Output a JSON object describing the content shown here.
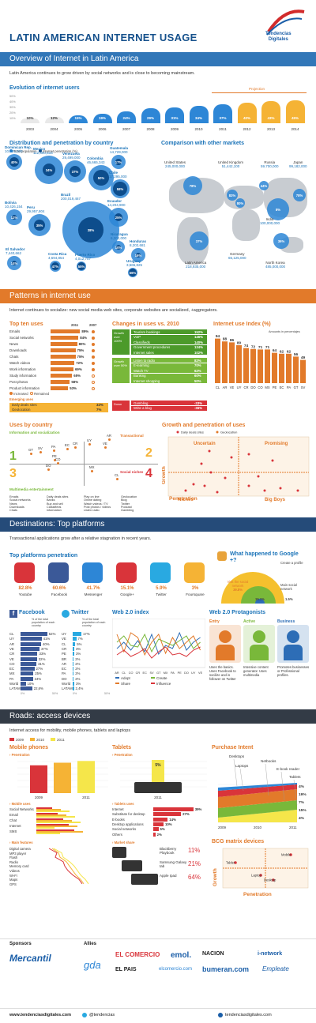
{
  "header": {
    "title": "Latin american internet usage",
    "logo_line1": "Tendencias",
    "logo_line2": "Digitales"
  },
  "overview": {
    "band_title": "Overview of Internet in Latin America",
    "intro": "Latin America continues to grow driven by social networks and is close to becoming mainstream.",
    "evolution_title": "Evolution of internet users",
    "projection_label": "Projection",
    "years": [
      "2003",
      "2004",
      "2005",
      "2006",
      "2007",
      "2008",
      "2009",
      "2010",
      "2011",
      "2012",
      "2013",
      "2014"
    ],
    "percents": [
      "10%",
      "12%",
      "15%",
      "19%",
      "24%",
      "29%",
      "31%",
      "34%",
      "37%",
      "40%",
      "43%",
      "45%"
    ],
    "yaxis": [
      "50%",
      "40%",
      "30%",
      "20%",
      "10%"
    ],
    "distribution_title": "Distribution and penetration by country",
    "legend_total": "Total population",
    "legend_penetration": "Internet penetration (%)",
    "countries": [
      {
        "name": "Dominican Rep.",
        "pop": "10,026,000",
        "pct": "40%"
      },
      {
        "name": "Mexico",
        "pop": "112,890,633",
        "pct": "34%"
      },
      {
        "name": "Venezuela",
        "pop": "29,499,000",
        "pct": "37%"
      },
      {
        "name": "Colombia",
        "pop": "46,665,343",
        "pct": "50%"
      },
      {
        "name": "Guatemala",
        "pop": "14,729,000",
        "pct": "17%"
      },
      {
        "name": "Chile",
        "pop": "17,295,000",
        "pct": "58%"
      },
      {
        "name": "Bolivia",
        "pop": "10,426,154",
        "pct": "12%"
      },
      {
        "name": "Brazil",
        "pop": "200,019,467",
        "pct": "38%"
      },
      {
        "name": "Ecuador",
        "pop": "14,204,900",
        "pct": "25%"
      },
      {
        "name": "Peru",
        "pop": "29,957,804",
        "pct": "35%"
      },
      {
        "name": "Nicaragua",
        "pop": "6,302,000",
        "pct": "10%"
      },
      {
        "name": "Honduras",
        "pop": "8,202,681",
        "pct": "16%"
      },
      {
        "name": "El Salvador",
        "pop": "7,440,662",
        "pct": "14%"
      },
      {
        "name": "Costa Rica",
        "pop": "4,694,854",
        "pct": "47%"
      },
      {
        "name": "Puerto Rico",
        "pop": "4,012,707",
        "pct": "55%"
      },
      {
        "name": "Uruguay",
        "pop": "3,565,825",
        "pct": "56%"
      }
    ],
    "comparison_title": "Comparison with other markets",
    "markets": [
      {
        "name": "United States",
        "pop": "245,000,000",
        "pct": "78%"
      },
      {
        "name": "United Kingdom",
        "pop": "51,442,100",
        "pct": "83%"
      },
      {
        "name": "Russia",
        "pop": "59,700,000",
        "pct": "44%"
      },
      {
        "name": "Japan",
        "pop": "99,182,000",
        "pct": "78%"
      },
      {
        "name": "India",
        "pop": "100,000,000",
        "pct": "8%"
      },
      {
        "name": "Germany",
        "pop": "65,125,000",
        "pct": "80%"
      },
      {
        "name": "Latin America",
        "pop": "218,935,000",
        "pct": "37%"
      },
      {
        "name": "North Korea",
        "pop": "485,000,000",
        "pct": "36%"
      }
    ]
  },
  "patterns": {
    "band_title": "Patterns in internet use",
    "intro": "Internet continues to socialize: new social media web sites, corporate websites are socialized, +aggregators.",
    "top_uses_title": "Top ten uses",
    "col_2011": "2011",
    "col_2007": "2007",
    "uses": [
      {
        "name": "Emails",
        "v": "89%"
      },
      {
        "name": "Social networks",
        "v": "84%"
      },
      {
        "name": "News",
        "v": "80%"
      },
      {
        "name": "Downloads",
        "v": "75%"
      },
      {
        "name": "Chats",
        "v": "75%"
      },
      {
        "name": "Watch videos",
        "v": "72%"
      },
      {
        "name": "Work information",
        "v": "69%"
      },
      {
        "name": "Study information",
        "v": "65%"
      },
      {
        "name": "Post photos",
        "v": "58%"
      },
      {
        "name": "Product information",
        "v": "53%"
      }
    ],
    "legend_increased": "Increased",
    "legend_remained": "Remained",
    "emerging_title": "Emerging uses",
    "emerging": [
      {
        "name": "Daily deals sites",
        "v": "32%"
      },
      {
        "name": "Geolocation",
        "v": "7%"
      }
    ],
    "changes_title": "Changes in uses vs. 2010",
    "growth1_label": "Growth over 100%",
    "growth1": [
      {
        "name": "Tourism bookings",
        "v": "152%"
      },
      {
        "name": "VoIP",
        "v": "146%"
      },
      {
        "name": "Classifieds",
        "v": "140%"
      },
      {
        "name": "Government procedures",
        "v": "134%"
      },
      {
        "name": "Internet sales",
        "v": "102%"
      }
    ],
    "growth2_label": "Growth over 50%",
    "growth2": [
      {
        "name": "Listen to radio",
        "v": "82%"
      },
      {
        "name": "E-learning",
        "v": "70%"
      },
      {
        "name": "Watch TV",
        "v": "62%"
      },
      {
        "name": "Banking",
        "v": "60%"
      },
      {
        "name": "Internet shopping",
        "v": "50%"
      }
    ],
    "down_label": "Down",
    "down": [
      {
        "name": "Gambling",
        "v": "-33%"
      },
      {
        "name": "Write a blog",
        "v": "-36%"
      }
    ],
    "index_title": "Internet use Index (%)",
    "index_note": "Amounts in percentajes",
    "index_values": [
      "94",
      "88",
      "86",
      "80",
      "74",
      "72",
      "71",
      "71",
      "64",
      "62",
      "62",
      "56",
      "49"
    ],
    "index_labels": [
      "CL",
      "AR",
      "VE",
      "UY",
      "CR",
      "DO",
      "CO",
      "MX",
      "PE",
      "EC",
      "PA",
      "GT",
      "SV"
    ],
    "uses_by_country_title": "Uses by country",
    "quad_labels": [
      "Information and socialization",
      "Transactional",
      "Multimedia entertainment",
      "Social niches"
    ],
    "quad_numbers": [
      "1",
      "2",
      "3",
      "4"
    ],
    "quad_countries": [
      "GT",
      "SV",
      "PA",
      "EC",
      "CR",
      "UY",
      "PE",
      "VE",
      "DO",
      "AR",
      "CO",
      "MX",
      "CL"
    ],
    "quad_lists": [
      "Emails\nSocial networks\nNews\nDownloads\nChats",
      "Daily deals sites\nBanks\nBuy and sell\nClassifieds\ninformation",
      "Play on line\nOnline dating\nWatch videos / TV\nPost photos / videos\nListen radio",
      "Geolocation\nBlog\nTwitter\nPodcast\nGambling"
    ],
    "growth_pen_title": "Growth and penetration of uses",
    "gp_legend_daily": "Daily deals sites",
    "gp_legend_geo": "Geolocation",
    "gp_zones": [
      "Uncertain",
      "Promising",
      "Niches",
      "Big Boys"
    ],
    "gp_axis_x": "Penetration",
    "gp_axis_y": "Growth"
  },
  "destinations": {
    "band_title": "Destinations: Top platforms",
    "intro": "Transactional applications grow after a relative stagnation in recent years.",
    "top_title": "Top platforms penetration",
    "platforms": [
      {
        "name": "Youtube",
        "v": "82.8%"
      },
      {
        "name": "Facebook",
        "v": "60.6%"
      },
      {
        "name": "Messenger",
        "v": "41.7%"
      },
      {
        "name": "Google+",
        "v": "15.1%"
      },
      {
        "name": "Twitter",
        "v": "5.9%"
      },
      {
        "name": "Foursquare",
        "v": "3%"
      }
    ],
    "gplus_title": "What happened to Google +?",
    "gplus_a": "Visit the social network",
    "gplus_a_v": "39.8%",
    "gplus_b": "Create a profile",
    "gplus_b_v": "15.1%",
    "gplus_c": "Main social network",
    "gplus_c_v": "1.5%",
    "facebook_title": "Facebook",
    "facebook_note": "% of the total population of each country",
    "facebook": [
      {
        "c": "CL",
        "v": "52%"
      },
      {
        "c": "UY",
        "v": "41%"
      },
      {
        "c": "AR",
        "v": "40%"
      },
      {
        "c": "VE",
        "v": "37%"
      },
      {
        "c": "CR",
        "v": "33%"
      },
      {
        "c": "VE",
        "v": "32%"
      },
      {
        "c": "CO",
        "v": "31%"
      },
      {
        "c": "EC",
        "v": "27%"
      },
      {
        "c": "MX",
        "v": "25%"
      },
      {
        "c": "PA",
        "v": "24%"
      },
      {
        "c": "World",
        "v": "10%"
      },
      {
        "c": "LATAM",
        "v": "22,6%"
      }
    ],
    "twitter_title": "Twitter",
    "twitter_note": "% of the total population of each country",
    "twitter": [
      {
        "c": "UY",
        "v": "17%"
      },
      {
        "c": "VE",
        "v": "7%"
      },
      {
        "c": "CL",
        "v": "5%"
      },
      {
        "c": "CR",
        "v": "3%"
      },
      {
        "c": "PE",
        "v": "3%"
      },
      {
        "c": "BR",
        "v": "2%"
      },
      {
        "c": "AR",
        "v": "2%"
      },
      {
        "c": "EC",
        "v": "2%"
      },
      {
        "c": "PA",
        "v": "2%"
      },
      {
        "c": "DO",
        "v": "2%"
      },
      {
        "c": "World",
        "v": "3%"
      },
      {
        "c": "LATAM",
        "v": "2,4%"
      }
    ],
    "axis_0": "0%",
    "axis_50": "50%",
    "web20_title": "Web 2.0 index",
    "web20_countries": [
      "AR",
      "CL",
      "CO",
      "CR",
      "EC",
      "SV",
      "GT",
      "MX",
      "PA",
      "PE",
      "DO",
      "UY",
      "VE"
    ],
    "web20_legend": [
      "Adopt",
      "Create",
      "Share",
      "Influence"
    ],
    "protag_title": "Web 2.0 Protagonists",
    "protag": [
      {
        "name": "Entry",
        "desc": "Uses the basics. Uses Facebook to socilize and is follower on Twitter"
      },
      {
        "name": "Active",
        "desc": "Intensive content generator. Uses multimedia"
      },
      {
        "name": "Business",
        "desc": "Promotes businesses or Professional profiles."
      }
    ]
  },
  "roads": {
    "band_title": "Roads: access devices",
    "intro": "Internet access for mobility, mobile phones, tablets and laptops",
    "legend_years": [
      "2009",
      "2010",
      "2011"
    ],
    "mobile_title": "Mobile phones",
    "penetration_label": "Penetration",
    "mobile_pcts": [
      "92%",
      "95%",
      "97%"
    ],
    "mobile_years": [
      "2009",
      "2011"
    ],
    "mobile_uses_label": "Mobile uses",
    "mobile_uses": [
      "Social Networks",
      "Email",
      "Chat",
      "Internet",
      "SMS"
    ],
    "main_features_label": "Main features",
    "features": [
      "Digital camera",
      "MP3 player",
      "Flash",
      "Radio",
      "Memory card",
      "Videos",
      "Wi-Fi",
      "Maps",
      "GPS"
    ],
    "tablets_title": "Tablets",
    "tablet_pct": "5%",
    "tablet_year": "2011",
    "tablet_uses_label": "Tablets uses",
    "tablet_uses": [
      {
        "name": "Internet",
        "v": "39%"
      },
      {
        "name": "Substitute for desktop",
        "v": "27%"
      },
      {
        "name": "E-books",
        "v": "14%"
      },
      {
        "name": "Desktop applications",
        "v": "10%"
      },
      {
        "name": "Social networks",
        "v": "5%"
      },
      {
        "name": "Others",
        "v": "2%"
      }
    ],
    "market_share_label": "Market share",
    "market": [
      {
        "name": "Blackberry Playbook",
        "v": "11%"
      },
      {
        "name": "Samsung Galaxy tab",
        "v": "21%"
      },
      {
        "name": "Apple Ipad",
        "v": "64%"
      }
    ],
    "purchase_title": "Purchase Intent",
    "purchase_labels": [
      "Desktops",
      "Laptops",
      "Netbooks",
      "E-book reader",
      "Tablets"
    ],
    "purchase_vals": [
      "4%",
      "19%",
      "7%",
      "15%",
      "4%"
    ],
    "purchase_years": [
      "2009",
      "2010",
      "2011"
    ],
    "bcg_title": "BCG matrix devices",
    "bcg_axis_x": "Penetration",
    "bcg_axis_y": "Growth",
    "bcg_items": [
      "Tablet",
      "Mobile",
      "Laptop",
      "Desktop"
    ]
  },
  "sponsors": {
    "sponsors_label": "Sponsors",
    "allies_label": "Allies",
    "sponsor": "Mercantil",
    "allies": [
      "gda",
      "EL COMERCIO",
      "emol.",
      "NACION",
      "i-network",
      "EL PAIS",
      "elcomercio.com",
      "bumeran.com",
      "Empleate"
    ]
  },
  "footer": {
    "url": "www.tendenciasdigitales.com",
    "twitter": "@tendencias",
    "url2": "tendenciasdigitales.com"
  }
}
